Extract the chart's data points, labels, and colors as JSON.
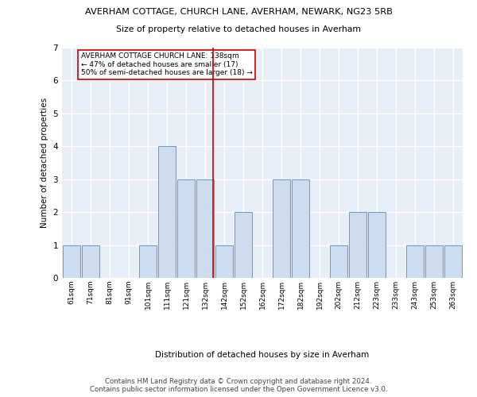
{
  "title1": "AVERHAM COTTAGE, CHURCH LANE, AVERHAM, NEWARK, NG23 5RB",
  "title2": "Size of property relative to detached houses in Averham",
  "xlabel": "Distribution of detached houses by size in Averham",
  "ylabel": "Number of detached properties",
  "bin_labels": [
    "61sqm",
    "71sqm",
    "81sqm",
    "91sqm",
    "101sqm",
    "111sqm",
    "121sqm",
    "132sqm",
    "142sqm",
    "152sqm",
    "162sqm",
    "172sqm",
    "182sqm",
    "192sqm",
    "202sqm",
    "212sqm",
    "223sqm",
    "233sqm",
    "243sqm",
    "253sqm",
    "263sqm"
  ],
  "counts": [
    1,
    1,
    0,
    0,
    1,
    4,
    3,
    3,
    1,
    2,
    0,
    3,
    3,
    0,
    1,
    2,
    2,
    0,
    1,
    1,
    1
  ],
  "marker_bin_idx": 7,
  "marker_color": "#cc0000",
  "bar_facecolor": "#ccddf0",
  "bar_edgecolor": "#6699cc",
  "background_color": "#e8eef8",
  "annotation_text": "AVERHAM COTTAGE CHURCH LANE: 138sqm\n← 47% of detached houses are smaller (17)\n50% of semi-detached houses are larger (18) →",
  "footer": "Contains HM Land Registry data © Crown copyright and database right 2024.\nContains public sector information licensed under the Open Government Licence v3.0.",
  "ylim": [
    0,
    7
  ],
  "yticks": [
    0,
    1,
    2,
    3,
    4,
    5,
    6,
    7
  ]
}
